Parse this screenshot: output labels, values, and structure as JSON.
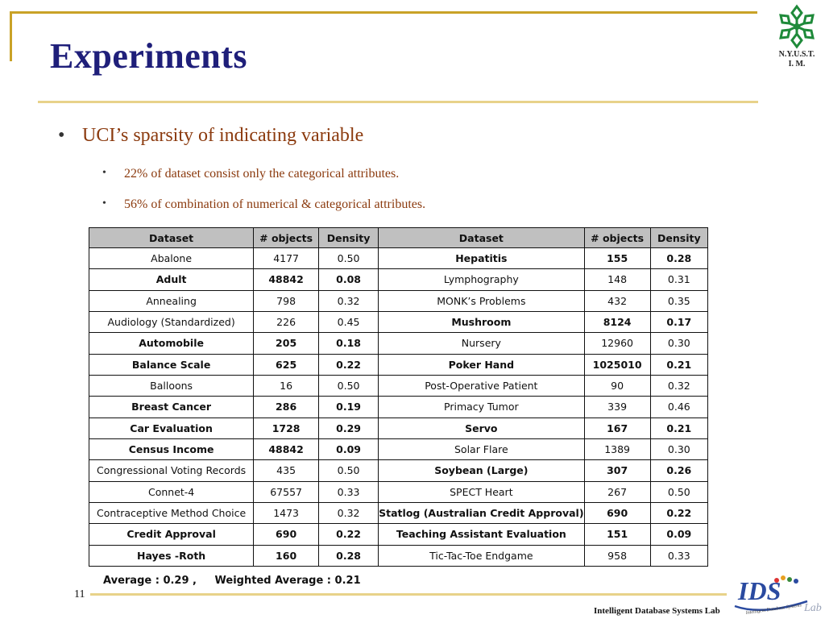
{
  "slide": {
    "title": "Experiments",
    "page_number": "11",
    "footer_lab": "Intelligent Database Systems Lab"
  },
  "logo": {
    "line1": "N.Y.U.S.T.",
    "line2": "I. M.",
    "icon": "snowflake-emblem-icon"
  },
  "bullets": {
    "main": "UCI’s sparsity of indicating variable",
    "sub1": "22%  of dataset consist only the categorical attributes.",
    "sub2": "56% of combination of numerical  & categorical attributes."
  },
  "table": {
    "headers": [
      "Dataset",
      "# objects",
      "Density",
      "Dataset",
      "# objects",
      "Density"
    ],
    "rows": [
      {
        "l": {
          "name": "Abalone",
          "objects": "4177",
          "density": "0.50",
          "bold": false
        },
        "r": {
          "name": "Hepatitis",
          "objects": "155",
          "density": "0.28",
          "bold": true
        }
      },
      {
        "l": {
          "name": "Adult",
          "objects": "48842",
          "density": "0.08",
          "bold": true
        },
        "r": {
          "name": "Lymphography",
          "objects": "148",
          "density": "0.31",
          "bold": false
        }
      },
      {
        "l": {
          "name": "Annealing",
          "objects": "798",
          "density": "0.32",
          "bold": false
        },
        "r": {
          "name": "MONK’s Problems",
          "objects": "432",
          "density": "0.35",
          "bold": false
        }
      },
      {
        "l": {
          "name": "Audiology (Standardized)",
          "objects": "226",
          "density": "0.45",
          "bold": false
        },
        "r": {
          "name": "Mushroom",
          "objects": "8124",
          "density": "0.17",
          "bold": true
        }
      },
      {
        "l": {
          "name": "Automobile",
          "objects": "205",
          "density": "0.18",
          "bold": true
        },
        "r": {
          "name": "Nursery",
          "objects": "12960",
          "density": "0.30",
          "bold": false
        }
      },
      {
        "l": {
          "name": "Balance Scale",
          "objects": "625",
          "density": "0.22",
          "bold": true
        },
        "r": {
          "name": "Poker Hand",
          "objects": "1025010",
          "density": "0.21",
          "bold": true
        }
      },
      {
        "l": {
          "name": "Balloons",
          "objects": "16",
          "density": "0.50",
          "bold": false
        },
        "r": {
          "name": "Post-Operative Patient",
          "objects": "90",
          "density": "0.32",
          "bold": false
        }
      },
      {
        "l": {
          "name": "Breast Cancer",
          "objects": "286",
          "density": "0.19",
          "bold": true
        },
        "r": {
          "name": "Primacy Tumor",
          "objects": "339",
          "density": "0.46",
          "bold": false
        }
      },
      {
        "l": {
          "name": "Car Evaluation",
          "objects": "1728",
          "density": "0.29",
          "bold": true
        },
        "r": {
          "name": "Servo",
          "objects": "167",
          "density": "0.21",
          "bold": true
        }
      },
      {
        "l": {
          "name": "Census Income",
          "objects": "48842",
          "density": "0.09",
          "bold": true
        },
        "r": {
          "name": "Solar Flare",
          "objects": "1389",
          "density": "0.30",
          "bold": false
        }
      },
      {
        "l": {
          "name": "Congressional Voting Records",
          "objects": "435",
          "density": "0.50",
          "bold": false
        },
        "r": {
          "name": "Soybean (Large)",
          "objects": "307",
          "density": "0.26",
          "bold": true
        }
      },
      {
        "l": {
          "name": "Connet-4",
          "objects": "67557",
          "density": "0.33",
          "bold": false
        },
        "r": {
          "name": "SPECT Heart",
          "objects": "267",
          "density": "0.50",
          "bold": false
        }
      },
      {
        "l": {
          "name": "Contraceptive Method Choice",
          "objects": "1473",
          "density": "0.32",
          "bold": false
        },
        "r": {
          "name": "Statlog (Australian Credit Approval)",
          "objects": "690",
          "density": "0.22",
          "bold": true
        }
      },
      {
        "l": {
          "name": "Credit Approval",
          "objects": "690",
          "density": "0.22",
          "bold": true
        },
        "r": {
          "name": "Teaching Assistant Evaluation",
          "objects": "151",
          "density": "0.09",
          "bold": true
        }
      },
      {
        "l": {
          "name": "Hayes -Roth",
          "objects": "160",
          "density": "0.28",
          "bold": true
        },
        "r": {
          "name": "Tic-Tac-Toe Endgame",
          "objects": "958",
          "density": "0.33",
          "bold": false
        }
      }
    ]
  },
  "averages": {
    "average": "Average : 0.29 ,",
    "weighted": "Weighted  Average : 0.21"
  },
  "ids_logo": {
    "text": "IDS",
    "sub": "Lab",
    "tagline": "Intelligent Database Systems",
    "icon": "ids-lab-logo-icon"
  }
}
